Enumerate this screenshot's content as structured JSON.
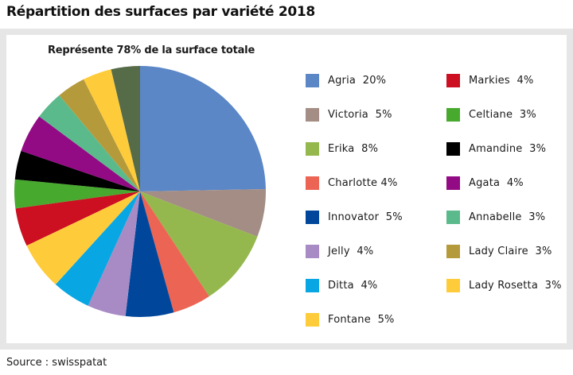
{
  "title": "Répartition des surfaces par variété 2018",
  "subtitle": "Représente 78% de la surface totale",
  "source": "Source : swisspatat",
  "chart_data": {
    "type": "pie",
    "title": "Répartition des surfaces par variété 2018",
    "subtitle": "Représente 78% de la surface totale",
    "legend_placement": "right",
    "slices": [
      {
        "name": "Agria",
        "label": "Agria  20%",
        "value": 20,
        "color": "#5b87c7"
      },
      {
        "name": "Victoria",
        "label": "Victoria  5%",
        "value": 5,
        "color": "#a38d85"
      },
      {
        "name": "Erika",
        "label": "Erika  8%",
        "value": 8,
        "color": "#95b84e"
      },
      {
        "name": "Charlotte",
        "label": "Charlotte 4%",
        "value": 4,
        "color": "#ec6453"
      },
      {
        "name": "Innovator",
        "label": "Innovator  5%",
        "value": 5,
        "color": "#00479c"
      },
      {
        "name": "Jelly",
        "label": "Jelly  4%",
        "value": 4,
        "color": "#a88bc4"
      },
      {
        "name": "Ditta",
        "label": "Ditta  4%",
        "value": 4,
        "color": "#08a7e4"
      },
      {
        "name": "Fontane",
        "label": "Fontane  5%",
        "value": 5,
        "color": "#fecc3a"
      },
      {
        "name": "Markies",
        "label": "Markies  4%",
        "value": 4,
        "color": "#cc0f21"
      },
      {
        "name": "Celtiane",
        "label": "Celtiane  3%",
        "value": 3,
        "color": "#48a92f"
      },
      {
        "name": "Amandine",
        "label": "Amandine  3%",
        "value": 3,
        "color": "#000000"
      },
      {
        "name": "Agata",
        "label": "Agata  4%",
        "value": 4,
        "color": "#930a85"
      },
      {
        "name": "Annabelle",
        "label": "Annabelle  3%",
        "value": 3,
        "color": "#5bba8c"
      },
      {
        "name": "Lady Claire",
        "label": "Lady Claire  3%",
        "value": 3,
        "color": "#b59a3c"
      },
      {
        "name": "Lady Rosetta",
        "label": "Lady Rosetta  3%",
        "value": 3,
        "color": "#fecc3a"
      },
      {
        "name": "",
        "label": "",
        "value": 3,
        "color": "#566b47"
      }
    ]
  }
}
